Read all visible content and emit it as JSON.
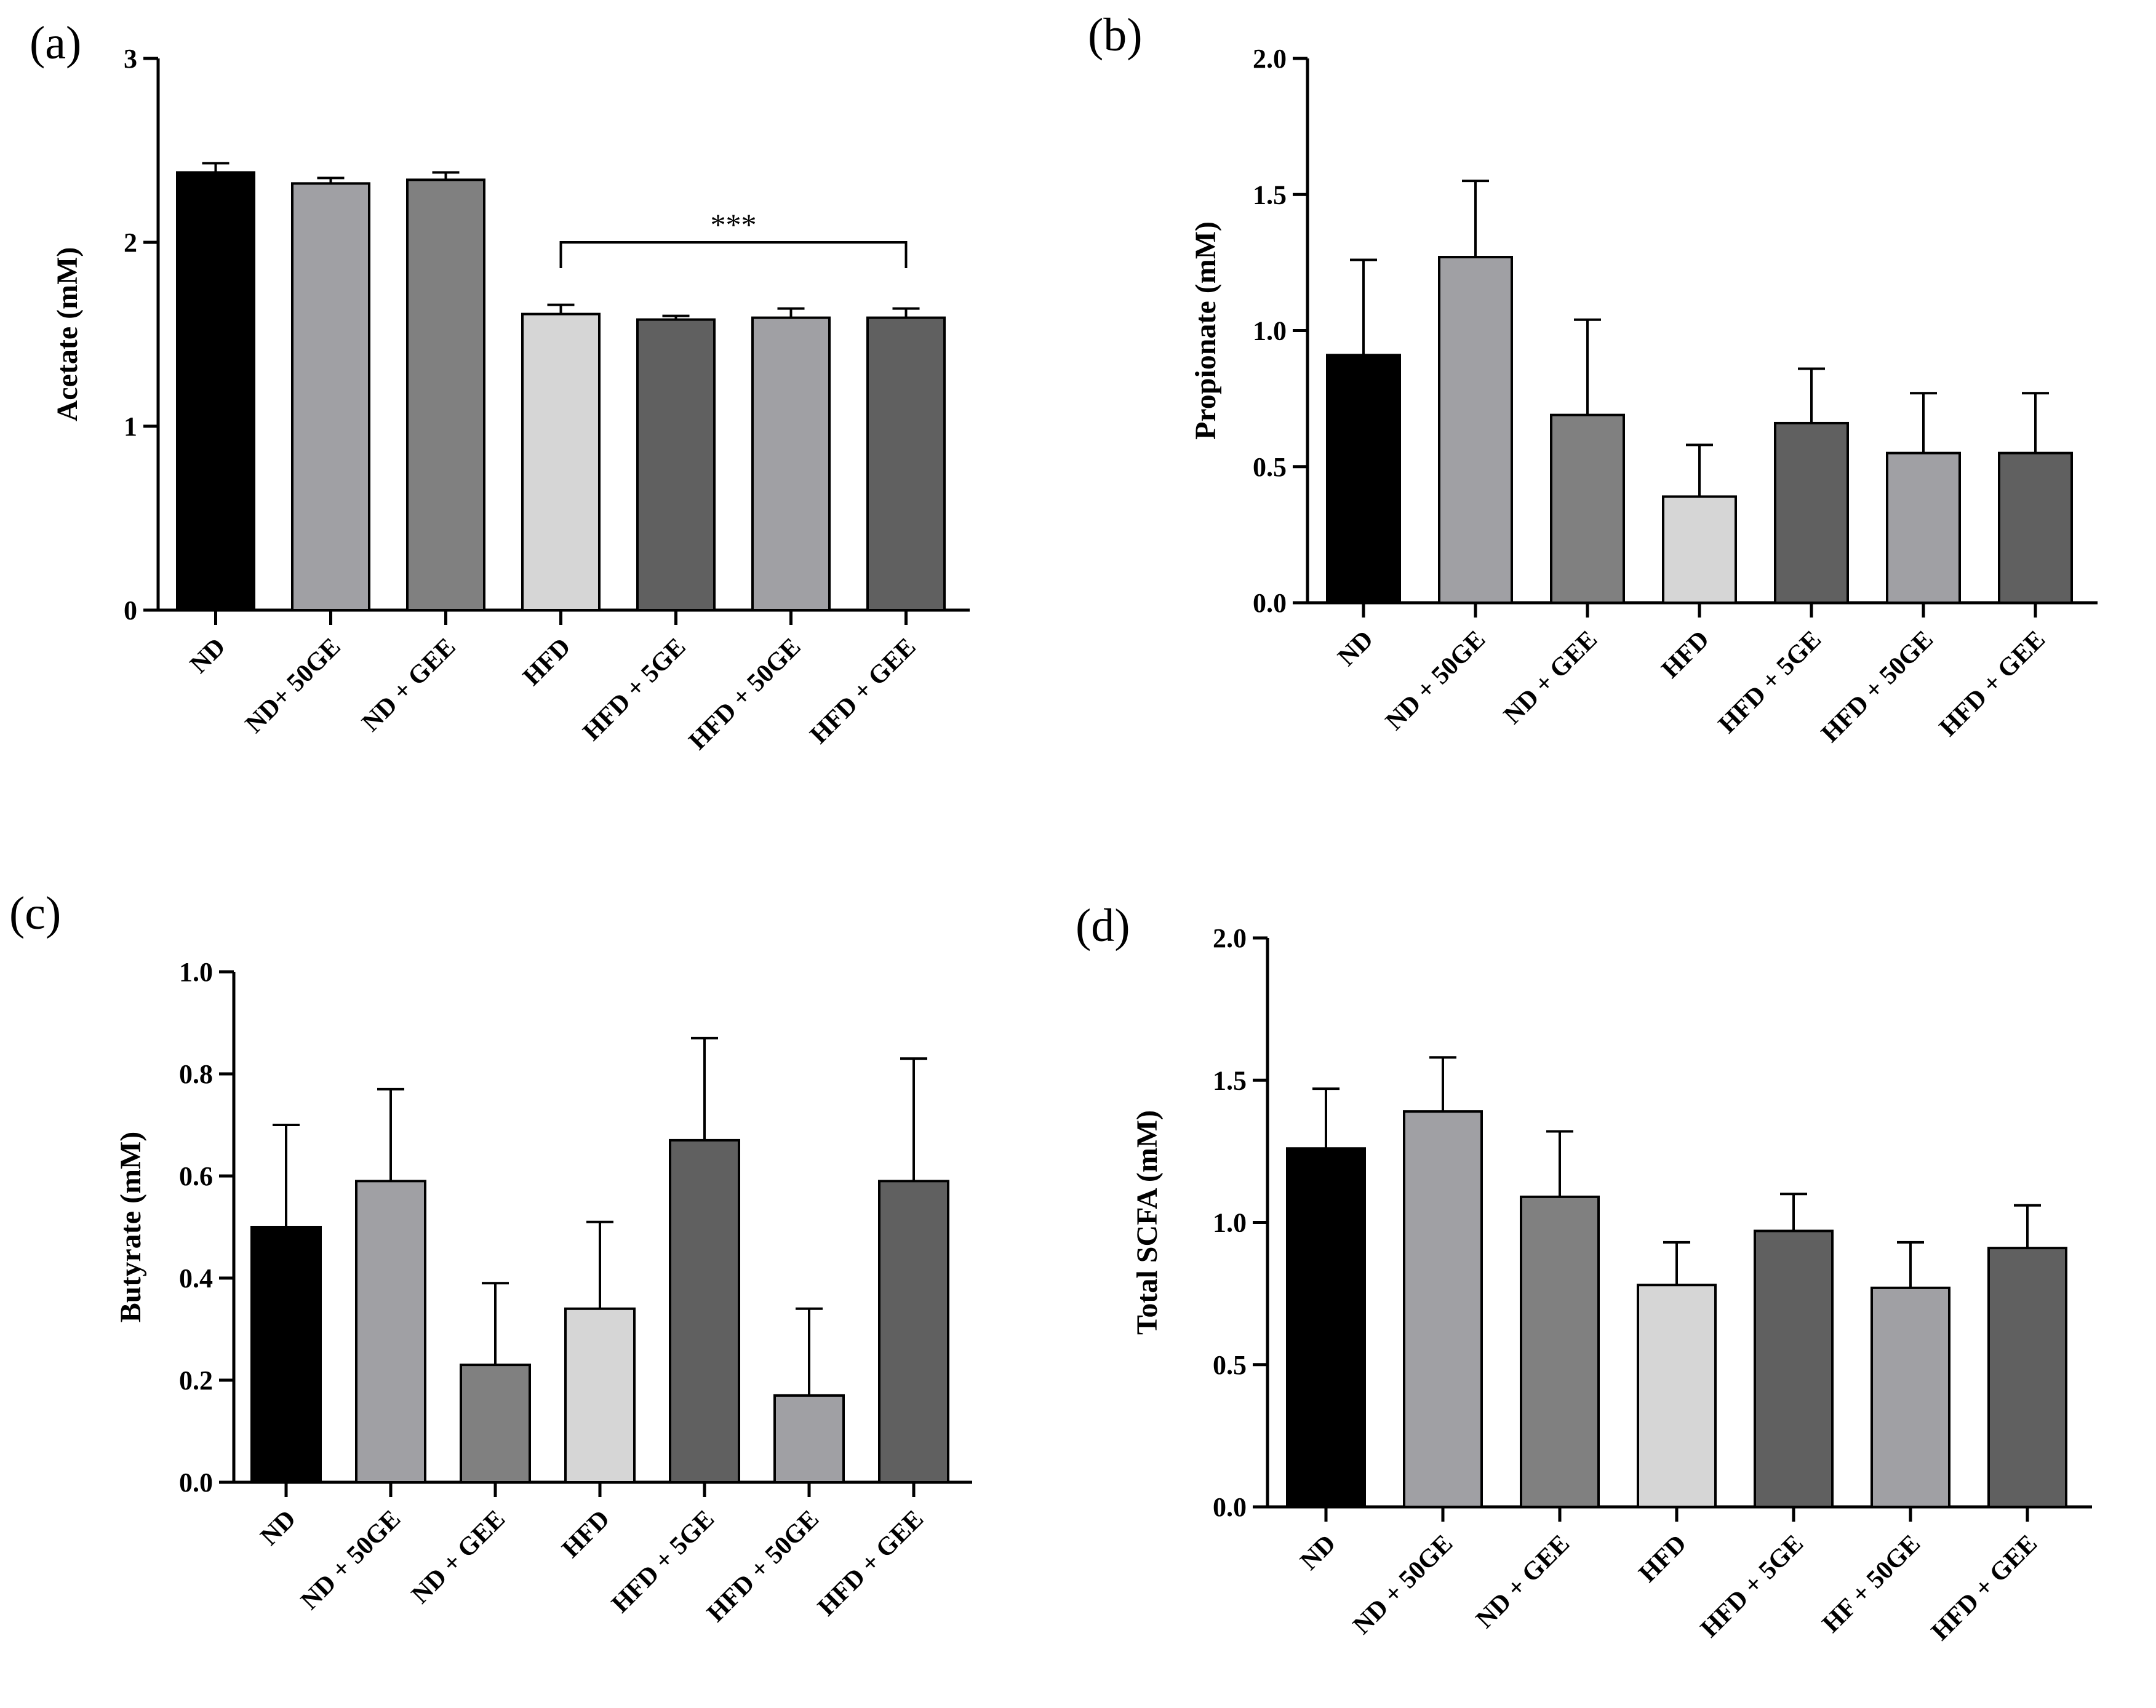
{
  "figure": {
    "description_labels": [
      "(a)",
      "(b)",
      "(c)",
      "(d)"
    ]
  },
  "chart_data": [
    {
      "type": "bar",
      "panel_label": "(a)",
      "ylabel": "Acetate (mM)",
      "xlabel": "",
      "ylim": [
        0,
        3
      ],
      "yticks": [
        0,
        1,
        2,
        3
      ],
      "ytick_labels": [
        "0",
        "1",
        "2",
        "3"
      ],
      "categories": [
        "ND",
        "ND+ 50GE",
        "ND + GEE",
        "HFD",
        "HFD + 5GE",
        "HFD + 50GE",
        "HFD + GEE"
      ],
      "values": [
        2.38,
        2.32,
        2.34,
        1.61,
        1.58,
        1.59,
        1.59
      ],
      "errors": [
        0.05,
        0.03,
        0.04,
        0.05,
        0.02,
        0.05,
        0.05
      ],
      "colors": [
        "#000000",
        "#a0a0a4",
        "#808080",
        "#d6d6d6",
        "#606060",
        "#a0a0a4",
        "#606060"
      ],
      "significance": [
        {
          "from": 3,
          "to": 6,
          "label": "***",
          "y": 2.0
        }
      ]
    },
    {
      "type": "bar",
      "panel_label": "(b)",
      "ylabel": "Propionate (mM)",
      "xlabel": "",
      "ylim": [
        0,
        2
      ],
      "yticks": [
        0,
        0.5,
        1,
        1.5,
        2
      ],
      "ytick_labels": [
        "0.0",
        "0.5",
        "1.0",
        "1.5",
        "2.0"
      ],
      "categories": [
        "ND",
        "ND + 50GE",
        "ND + GEE",
        "HFD",
        "HFD + 5GE",
        "HFD + 50GE",
        "HFD + GEE"
      ],
      "values": [
        0.91,
        1.27,
        0.69,
        0.39,
        0.66,
        0.55,
        0.55
      ],
      "errors": [
        0.35,
        0.28,
        0.35,
        0.19,
        0.2,
        0.22,
        0.22
      ],
      "colors": [
        "#000000",
        "#a0a0a4",
        "#808080",
        "#d6d6d6",
        "#606060",
        "#a0a0a4",
        "#606060"
      ],
      "significance": []
    },
    {
      "type": "bar",
      "panel_label": "(c)",
      "ylabel": "Butyrate (mM)",
      "xlabel": "",
      "ylim": [
        0,
        1
      ],
      "yticks": [
        0,
        0.2,
        0.4,
        0.6,
        0.8,
        1.0
      ],
      "ytick_labels": [
        "0.0",
        "0.2",
        "0.4",
        "0.6",
        "0.8",
        "1.0"
      ],
      "categories": [
        "ND",
        "ND + 50GE",
        "ND + GEE",
        "HFD",
        "HFD + 5GE",
        "HFD + 50GE",
        "HFD + GEE"
      ],
      "values": [
        0.5,
        0.59,
        0.23,
        0.34,
        0.67,
        0.17,
        0.59
      ],
      "errors": [
        0.2,
        0.18,
        0.16,
        0.17,
        0.2,
        0.17,
        0.24
      ],
      "colors": [
        "#000000",
        "#a0a0a4",
        "#808080",
        "#d6d6d6",
        "#606060",
        "#a0a0a4",
        "#606060"
      ],
      "significance": []
    },
    {
      "type": "bar",
      "panel_label": "(d)",
      "ylabel": "Total SCFA (mM)",
      "xlabel": "",
      "ylim": [
        0,
        2
      ],
      "yticks": [
        0,
        0.5,
        1,
        1.5,
        2
      ],
      "ytick_labels": [
        "0.0",
        "0.5",
        "1.0",
        "1.5",
        "2.0"
      ],
      "categories": [
        "ND",
        "ND + 50GE",
        "ND + GEE",
        "HFD",
        "HFD + 5GE",
        "HF + 50GE",
        "HFD + GEE"
      ],
      "values": [
        1.26,
        1.39,
        1.09,
        0.78,
        0.97,
        0.77,
        0.91
      ],
      "errors": [
        0.21,
        0.19,
        0.23,
        0.15,
        0.13,
        0.16,
        0.15
      ],
      "colors": [
        "#000000",
        "#a0a0a4",
        "#808080",
        "#d6d6d6",
        "#606060",
        "#a0a0a4",
        "#606060"
      ],
      "significance": []
    }
  ]
}
